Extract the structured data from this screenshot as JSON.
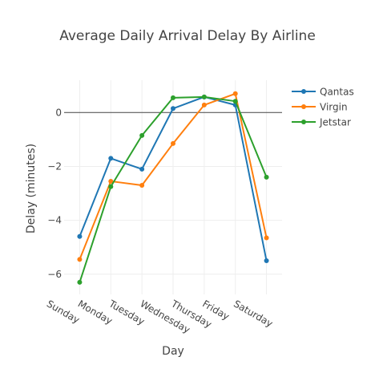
{
  "chart_data": {
    "type": "line",
    "title": "Average Daily Arrival Delay By Airline",
    "xlabel": "Day",
    "ylabel": "Delay (minutes)",
    "categories": [
      "Sunday",
      "Monday",
      "Tuesday",
      "Wednesday",
      "Thursday",
      "Friday",
      "Saturday"
    ],
    "ylim": [
      -6.75,
      1.2
    ],
    "yticks": [
      0,
      -2,
      -4,
      -6
    ],
    "ytick_labels": [
      "0",
      "−2",
      "−4",
      "−6"
    ],
    "grid": true,
    "zero_line": true,
    "legend_position": "top-right",
    "series": [
      {
        "name": "Qantas",
        "color": "#1f77b4",
        "values": [
          -4.6,
          -1.7,
          -2.1,
          0.15,
          0.58,
          0.28,
          -5.5
        ]
      },
      {
        "name": "Virgin",
        "color": "#ff7f0e",
        "values": [
          -5.45,
          -2.55,
          -2.7,
          -1.15,
          0.28,
          0.7,
          -4.65
        ]
      },
      {
        "name": "Jetstar",
        "color": "#2ca02c",
        "values": [
          -6.3,
          -2.75,
          -0.85,
          0.55,
          0.58,
          0.42,
          -2.4
        ]
      }
    ]
  }
}
